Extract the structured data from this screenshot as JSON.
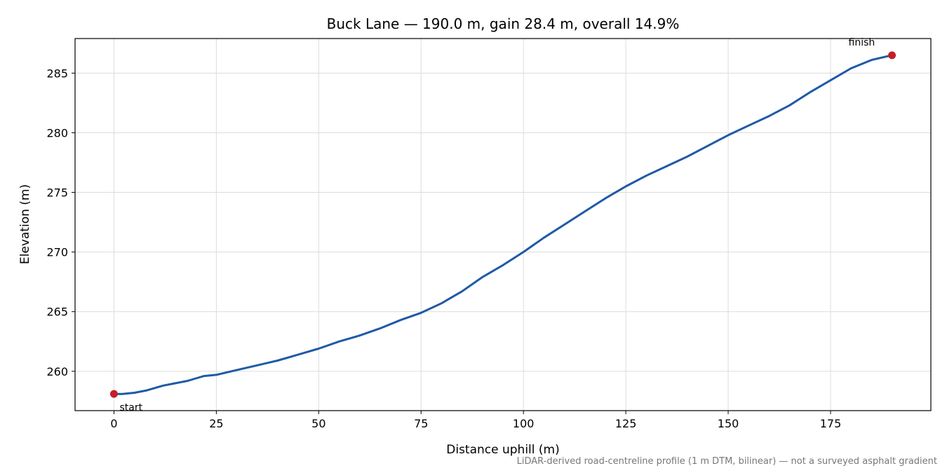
{
  "chart_data": {
    "type": "line",
    "title": "Buck Lane — 190.0 m, gain 28.4 m, overall 14.9%",
    "xlabel": "Distance uphill (m)",
    "ylabel": "Elevation (m)",
    "xlim": [
      -9.5,
      199.5
    ],
    "ylim": [
      256.7,
      287.9
    ],
    "xticks": [
      0,
      25,
      50,
      75,
      100,
      125,
      150,
      175
    ],
    "yticks": [
      260,
      265,
      270,
      275,
      280,
      285
    ],
    "grid": true,
    "series": [
      {
        "color": "#1f5aa6",
        "x": [
          0,
          2,
          5,
          8,
          10,
          12,
          15,
          18,
          20,
          22,
          25,
          30,
          35,
          40,
          43,
          46,
          50,
          55,
          60,
          65,
          70,
          75,
          80,
          85,
          90,
          95,
          100,
          105,
          110,
          115,
          120,
          125,
          130,
          135,
          140,
          145,
          150,
          155,
          160,
          165,
          170,
          175,
          180,
          185,
          190
        ],
        "y": [
          258.1,
          258.1,
          258.2,
          258.4,
          258.6,
          258.8,
          259.0,
          259.2,
          259.4,
          259.6,
          259.7,
          260.1,
          260.5,
          260.9,
          261.2,
          261.5,
          261.9,
          262.5,
          263.0,
          263.6,
          264.3,
          264.9,
          265.7,
          266.7,
          267.9,
          268.9,
          270.0,
          271.2,
          272.3,
          273.4,
          274.5,
          275.5,
          276.4,
          277.2,
          278.0,
          278.9,
          279.8,
          280.6,
          281.4,
          282.3,
          283.4,
          284.4,
          285.4,
          286.1,
          286.5
        ]
      }
    ],
    "markers": [
      {
        "x": 0,
        "y": 258.1,
        "label": "start",
        "color": "#c41e2a"
      },
      {
        "x": 190,
        "y": 286.5,
        "label": "finish",
        "color": "#c41e2a"
      }
    ],
    "footnote": "LiDAR-derived road-centreline profile (1 m DTM, bilinear) — not a surveyed asphalt gradient"
  }
}
